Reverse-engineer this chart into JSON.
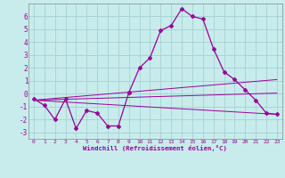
{
  "xlabel": "Windchill (Refroidissement éolien,°C)",
  "bg_color": "#c8ecec",
  "grid_color": "#aad4d4",
  "line_color": "#990099",
  "xlim": [
    -0.5,
    23.5
  ],
  "ylim": [
    -3.5,
    7.0
  ],
  "yticks": [
    -3,
    -2,
    -1,
    0,
    1,
    2,
    3,
    4,
    5,
    6
  ],
  "xticks": [
    0,
    1,
    2,
    3,
    4,
    5,
    6,
    7,
    8,
    9,
    10,
    11,
    12,
    13,
    14,
    15,
    16,
    17,
    18,
    19,
    20,
    21,
    22,
    23
  ],
  "xtick_labels": [
    "0",
    "1",
    "2",
    "3",
    "4",
    "5",
    "6",
    "7",
    "8",
    "9",
    "10",
    "11",
    "12",
    "13",
    "14",
    "15",
    "16",
    "17",
    "18",
    "19",
    "20",
    "21",
    "22",
    "23"
  ],
  "seg1_x": [
    0,
    1,
    2,
    3,
    4,
    5,
    6,
    7,
    8,
    9
  ],
  "seg1_y": [
    -0.4,
    -0.9,
    -2.0,
    -0.4,
    -2.7,
    -1.3,
    -1.5,
    -2.5,
    -2.5,
    0.1
  ],
  "seg2_x": [
    9,
    10,
    11,
    12,
    13,
    14,
    15,
    16,
    17,
    18,
    19,
    20,
    21,
    22,
    23
  ],
  "seg2_y": [
    0.1,
    2.0,
    2.8,
    4.9,
    5.3,
    6.6,
    6.0,
    5.8,
    3.5,
    1.7,
    1.1,
    0.3,
    -0.5,
    -1.5,
    -1.6
  ],
  "trend1_x": [
    0,
    23
  ],
  "trend1_y": [
    -0.5,
    -1.6
  ],
  "trend2_x": [
    0,
    23
  ],
  "trend2_y": [
    -0.5,
    1.1
  ],
  "trend3_x": [
    0,
    23
  ],
  "trend3_y": [
    -0.5,
    0.05
  ]
}
